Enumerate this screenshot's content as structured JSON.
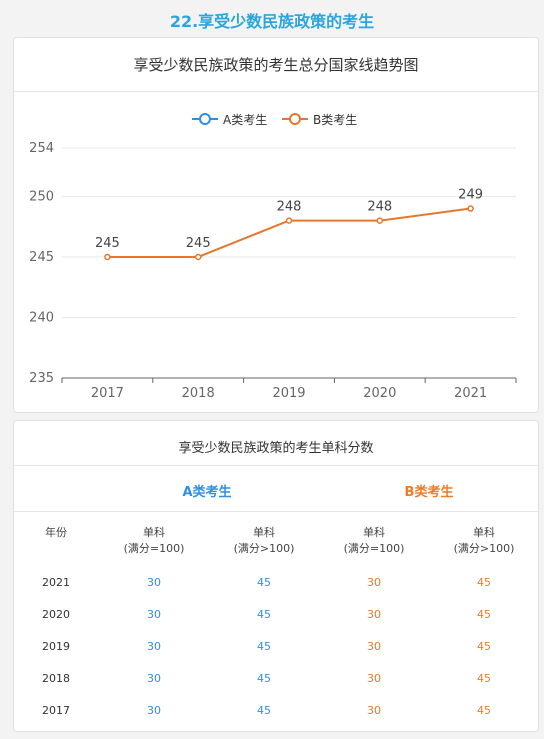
{
  "heading": "22.享受少数民族政策的考生",
  "colors": {
    "blue": "#2e8fe6",
    "orange": "#e6772a",
    "heading": "#2aa5dd"
  },
  "chart_data": {
    "type": "line",
    "title": "享受少数民族政策的考生总分国家线趋势图",
    "categories": [
      "2017",
      "2018",
      "2019",
      "2020",
      "2021"
    ],
    "series": [
      {
        "name": "A类考生",
        "values": [
          245,
          245,
          248,
          248,
          249
        ],
        "color": "#2e8fe6",
        "shown": false
      },
      {
        "name": "B类考生",
        "values": [
          245,
          245,
          248,
          248,
          249
        ],
        "color": "#e6772a",
        "shown": true
      }
    ],
    "yticks": [
      235,
      240,
      245,
      250,
      254
    ],
    "ylim": [
      235,
      254
    ],
    "legend": "top",
    "grid": true,
    "data_labels": true
  },
  "table": {
    "title": "享受少数民族政策的考生单科分数",
    "group_a": "A类考生",
    "group_b": "B类考生",
    "col_year": "年份",
    "col_sub1": [
      "单科",
      "(满分=100)"
    ],
    "col_sub2": [
      "单科",
      "(满分>100)"
    ],
    "rows": [
      {
        "year": "2021",
        "a1": "30",
        "a2": "45",
        "b1": "30",
        "b2": "45"
      },
      {
        "year": "2020",
        "a1": "30",
        "a2": "45",
        "b1": "30",
        "b2": "45"
      },
      {
        "year": "2019",
        "a1": "30",
        "a2": "45",
        "b1": "30",
        "b2": "45"
      },
      {
        "year": "2018",
        "a1": "30",
        "a2": "45",
        "b1": "30",
        "b2": "45"
      },
      {
        "year": "2017",
        "a1": "30",
        "a2": "45",
        "b1": "30",
        "b2": "45"
      }
    ]
  }
}
